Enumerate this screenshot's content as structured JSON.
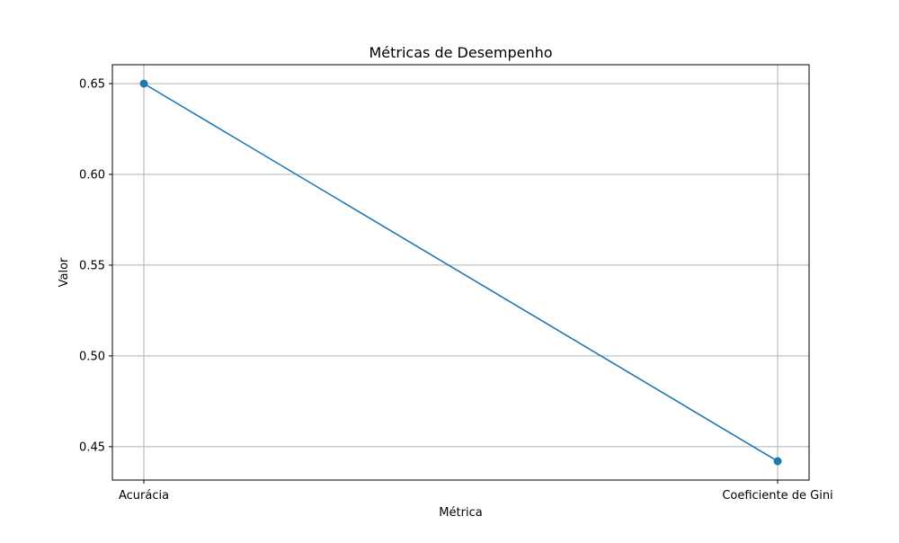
{
  "chart_data": {
    "type": "line",
    "title": "Métricas de Desempenho",
    "xlabel": "Métrica",
    "ylabel": "Valor",
    "categories": [
      "Acurácia",
      "Coeficiente de Gini"
    ],
    "series": [
      {
        "values": [
          0.65,
          0.442
        ],
        "color": "#1f77b4",
        "marker": "circle"
      }
    ],
    "ylim": [
      0.4316,
      0.6604
    ],
    "yticks": [
      0.45,
      0.5,
      0.55,
      0.6,
      0.65
    ],
    "ytick_labels": [
      "0.45",
      "0.50",
      "0.55",
      "0.60",
      "0.65"
    ],
    "grid": true,
    "legend": false
  }
}
